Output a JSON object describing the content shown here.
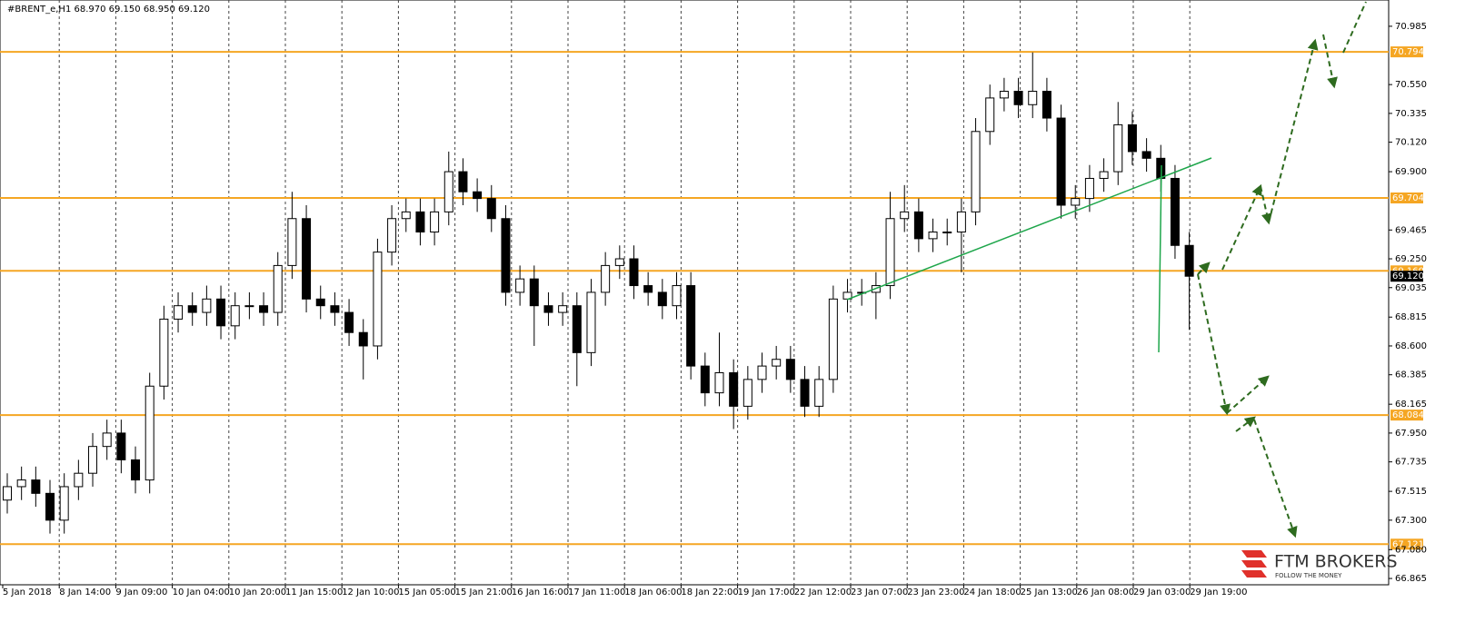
{
  "chart_data": {
    "type": "candlestick",
    "title": "#BRENT_e,H1  68.970 69.150 68.950 69.120",
    "up_color": "#ffffff",
    "down_color": "#000000",
    "level_color": "#f5a623",
    "trend_color": "#1ea64b",
    "ylim": [
      66.818,
      71.181
    ],
    "yticks": [
      {
        "value": 70.985,
        "label": "70.985"
      },
      {
        "value": 70.55,
        "label": "70.550"
      },
      {
        "value": 70.335,
        "label": "70.335"
      },
      {
        "value": 70.12,
        "label": "70.120"
      },
      {
        "value": 69.9,
        "label": "69.900"
      },
      {
        "value": 69.465,
        "label": "69.465"
      },
      {
        "value": 69.25,
        "label": "69.250"
      },
      {
        "value": 69.035,
        "label": "69.035"
      },
      {
        "value": 68.815,
        "label": "68.815"
      },
      {
        "value": 68.6,
        "label": "68.600"
      },
      {
        "value": 68.385,
        "label": "68.385"
      },
      {
        "value": 68.165,
        "label": "68.165"
      },
      {
        "value": 67.95,
        "label": "67.950"
      },
      {
        "value": 67.735,
        "label": "67.735"
      },
      {
        "value": 67.515,
        "label": "67.515"
      },
      {
        "value": 67.3,
        "label": "67.300"
      },
      {
        "value": 67.08,
        "label": "67.080"
      },
      {
        "value": 66.865,
        "label": "66.865"
      }
    ],
    "levels": [
      {
        "value": 70.794,
        "label": "70.794"
      },
      {
        "value": 69.704,
        "label": "69.704"
      },
      {
        "value": 69.16,
        "label": "69.160"
      },
      {
        "value": 68.084,
        "label": "68.084"
      },
      {
        "value": 67.121,
        "label": "67.121"
      }
    ],
    "current_price": {
      "value": 69.12,
      "label": "69.120"
    },
    "xtick_labels": [
      "5 Jan 2018",
      "8 Jan 14:00",
      "9 Jan 09:00",
      "10 Jan 04:00",
      "10 Jan 20:00",
      "11 Jan 15:00",
      "12 Jan 10:00",
      "15 Jan 05:00",
      "15 Jan 21:00",
      "16 Jan 16:00",
      "17 Jan 11:00",
      "18 Jan 06:00",
      "18 Jan 22:00",
      "19 Jan 17:00",
      "22 Jan 12:00",
      "23 Jan 07:00",
      "23 Jan 23:00",
      "24 Jan 18:00",
      "25 Jan 13:00",
      "26 Jan 08:00",
      "29 Jan 03:00",
      "29 Jan 19:00"
    ],
    "open": [
      67.45,
      67.55,
      67.6,
      67.5,
      67.3,
      67.55,
      67.65,
      67.85,
      67.95,
      67.75,
      67.6,
      68.3,
      68.8,
      68.9,
      68.85,
      68.95,
      68.75,
      68.9,
      68.9,
      68.85,
      69.2,
      69.55,
      68.95,
      68.9,
      68.85,
      68.7,
      68.6,
      69.3,
      69.55,
      69.6,
      69.45,
      69.6,
      69.9,
      69.75,
      69.7,
      69.55,
      69.0,
      69.1,
      68.9,
      68.85,
      68.9,
      68.55,
      69.0,
      69.2,
      69.25,
      69.05,
      69.0,
      68.9,
      69.05,
      68.45,
      68.25,
      68.4,
      68.15,
      68.35,
      68.45,
      68.5,
      68.35,
      68.15,
      68.35,
      68.95,
      69.0,
      69.0,
      69.05,
      69.55,
      69.6,
      69.4,
      69.45,
      69.45,
      69.6,
      70.2,
      70.45,
      70.5,
      70.4,
      70.5,
      70.3,
      69.65,
      69.7,
      69.85,
      69.9,
      70.25,
      70.05,
      70.0,
      69.85,
      69.35
    ],
    "high": [
      67.65,
      67.7,
      67.7,
      67.6,
      67.65,
      67.75,
      67.95,
      68.05,
      68.05,
      67.85,
      68.4,
      68.9,
      69.0,
      69.0,
      69.05,
      69.05,
      69.0,
      69.0,
      69.0,
      69.3,
      69.75,
      69.65,
      69.05,
      69.0,
      68.95,
      68.8,
      69.4,
      69.65,
      69.7,
      69.7,
      69.7,
      70.05,
      70.0,
      69.85,
      69.8,
      69.65,
      69.2,
      69.2,
      69.0,
      69.0,
      69.0,
      69.1,
      69.3,
      69.35,
      69.35,
      69.15,
      69.1,
      69.15,
      69.15,
      68.55,
      68.7,
      68.5,
      68.45,
      68.55,
      68.6,
      68.6,
      68.45,
      68.45,
      69.05,
      69.1,
      69.1,
      69.15,
      69.75,
      69.8,
      69.7,
      69.55,
      69.55,
      69.7,
      70.3,
      70.55,
      70.6,
      70.6,
      70.79,
      70.6,
      70.4,
      69.8,
      69.95,
      70.0,
      70.42,
      70.35,
      70.15,
      70.1,
      69.95,
      69.45
    ],
    "low": [
      67.35,
      67.45,
      67.4,
      67.2,
      67.2,
      67.45,
      67.55,
      67.75,
      67.65,
      67.5,
      67.5,
      68.2,
      68.7,
      68.75,
      68.75,
      68.65,
      68.65,
      68.8,
      68.75,
      68.75,
      69.1,
      68.85,
      68.8,
      68.75,
      68.6,
      68.35,
      68.5,
      69.2,
      69.45,
      69.35,
      69.35,
      69.5,
      69.65,
      69.6,
      69.45,
      68.9,
      68.9,
      68.6,
      68.75,
      68.75,
      68.3,
      68.45,
      68.9,
      69.1,
      68.95,
      68.9,
      68.8,
      68.8,
      68.35,
      68.15,
      68.15,
      67.98,
      68.05,
      68.25,
      68.35,
      68.25,
      68.07,
      68.07,
      68.25,
      68.85,
      68.9,
      68.8,
      68.95,
      69.45,
      69.3,
      69.3,
      69.35,
      69.15,
      69.5,
      70.1,
      70.35,
      70.3,
      70.3,
      70.2,
      69.55,
      69.55,
      69.6,
      69.75,
      69.8,
      69.95,
      69.9,
      69.75,
      69.25,
      68.72
    ],
    "close": [
      67.55,
      67.6,
      67.5,
      67.3,
      67.55,
      67.65,
      67.85,
      67.95,
      67.75,
      67.6,
      68.3,
      68.8,
      68.9,
      68.85,
      68.95,
      68.75,
      68.9,
      68.9,
      68.85,
      69.2,
      69.55,
      68.95,
      68.9,
      68.85,
      68.7,
      68.6,
      69.3,
      69.55,
      69.6,
      69.45,
      69.6,
      69.9,
      69.75,
      69.7,
      69.55,
      69.0,
      69.1,
      68.9,
      68.85,
      68.9,
      68.55,
      69.0,
      69.2,
      69.25,
      69.05,
      69.0,
      68.9,
      69.05,
      68.45,
      68.25,
      68.4,
      68.15,
      68.35,
      68.45,
      68.5,
      68.35,
      68.15,
      68.35,
      68.95,
      69.0,
      69.0,
      69.05,
      69.55,
      69.6,
      69.4,
      69.45,
      69.45,
      69.6,
      70.2,
      70.45,
      70.5,
      70.4,
      70.5,
      70.3,
      69.65,
      69.7,
      69.85,
      69.9,
      70.25,
      70.05,
      70.0,
      69.85,
      69.35,
      69.12
    ]
  },
  "logo": {
    "name": "FTM BROKERS",
    "tagline": "FOLLOW THE MONEY"
  }
}
